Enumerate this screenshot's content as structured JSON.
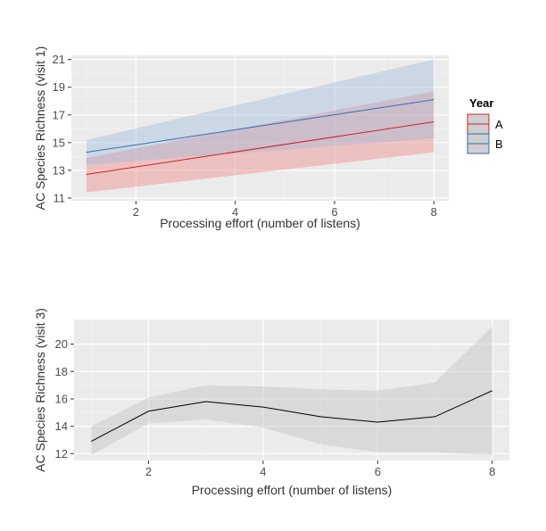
{
  "chart_data": [
    {
      "type": "line",
      "xlabel": "Processing effort (number of listens)",
      "ylabel": "AC Species Richness  (visit 1)",
      "xlim": [
        0.7,
        8.3
      ],
      "ylim": [
        10.8,
        21.3
      ],
      "xticks": [
        2,
        4,
        6,
        8
      ],
      "yticks": [
        11,
        13,
        15,
        17,
        19,
        21
      ],
      "grid": true,
      "legend_position": "right",
      "legend_title": "Year",
      "series": [
        {
          "name": "A",
          "color": "#cc2222",
          "fill": "#f08080",
          "x": [
            1,
            8
          ],
          "y": [
            12.7,
            16.5
          ],
          "lower": [
            11.4,
            14.3
          ],
          "upper": [
            13.9,
            18.7
          ]
        },
        {
          "name": "B",
          "color": "#2f6eb5",
          "fill": "#9cb8dd",
          "x": [
            1,
            8
          ],
          "y": [
            14.3,
            18.1
          ],
          "lower": [
            13.4,
            15.3
          ],
          "upper": [
            15.2,
            21.0
          ]
        }
      ]
    },
    {
      "type": "line",
      "xlabel": "Processing effort (number of listens)",
      "ylabel": "AC Species Richness  (visit 3)",
      "xlim": [
        0.7,
        8.3
      ],
      "ylim": [
        11.5,
        21.8
      ],
      "xticks": [
        2,
        4,
        6,
        8
      ],
      "yticks": [
        12,
        14,
        16,
        18,
        20
      ],
      "grid": true,
      "series": [
        {
          "color": "#000000",
          "fill": "#bdbdbd",
          "x": [
            1,
            2,
            3,
            4,
            5,
            6,
            7,
            8
          ],
          "y": [
            12.9,
            15.1,
            15.8,
            15.4,
            14.7,
            14.3,
            14.7,
            16.6
          ],
          "lower": [
            11.9,
            14.2,
            14.5,
            13.9,
            12.7,
            12.1,
            12.1,
            11.9
          ],
          "upper": [
            14.0,
            16.1,
            17.0,
            16.9,
            16.7,
            16.6,
            17.2,
            21.3
          ]
        }
      ]
    }
  ]
}
